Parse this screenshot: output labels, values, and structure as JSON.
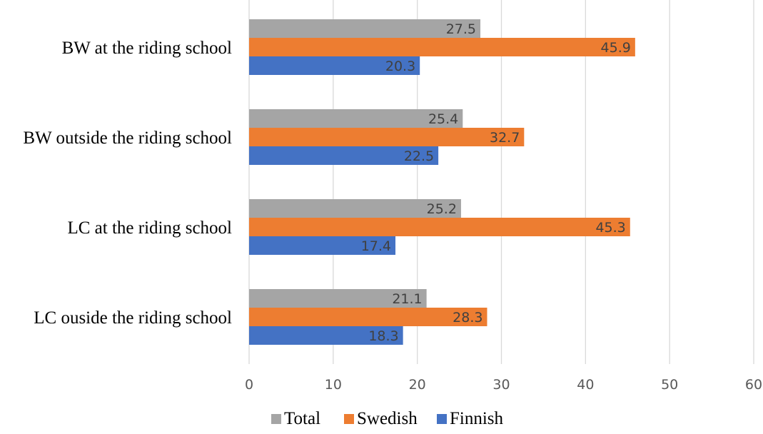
{
  "chart_data": {
    "type": "bar",
    "orientation": "horizontal",
    "title": "",
    "xlabel": "",
    "ylabel": "",
    "categories": [
      "BW at the riding school",
      "BW outside the riding school",
      "LC at the riding school",
      "LC ouside the riding school"
    ],
    "series": [
      {
        "name": "Total",
        "color": "#a5a5a5",
        "values": [
          27.5,
          25.4,
          25.2,
          21.1
        ]
      },
      {
        "name": "Swedish",
        "color": "#ed7d31",
        "values": [
          45.9,
          32.7,
          45.3,
          28.3
        ]
      },
      {
        "name": "Finnish",
        "color": "#4472c4",
        "values": [
          20.3,
          22.5,
          17.4,
          18.3
        ]
      }
    ],
    "xlim": [
      0,
      60
    ],
    "xticks": [
      0,
      10,
      20,
      30,
      40,
      50,
      60
    ],
    "grid": true,
    "legend": {
      "position": "bottom",
      "entries": [
        "Total",
        "Swedish",
        "Finnish"
      ]
    },
    "data_labels": true
  }
}
